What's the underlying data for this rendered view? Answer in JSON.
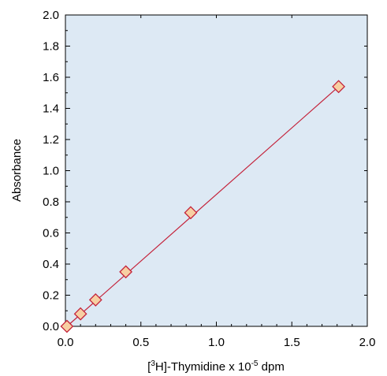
{
  "chart_data": {
    "type": "scatter",
    "xlabel": {
      "prefix": "[",
      "sup1": "3",
      "mid": "H]-Thymidine x 10",
      "sup2": "-5",
      "suffix": " dpm"
    },
    "ylabel": "Absorbance",
    "xlim": [
      0.0,
      2.0
    ],
    "ylim": [
      0.0,
      2.0
    ],
    "x_ticks": [
      "0.0",
      "0.5",
      "1.0",
      "1.5",
      "2.0"
    ],
    "y_ticks": [
      "0.0",
      "0.2",
      "0.4",
      "0.6",
      "0.8",
      "1.0",
      "1.2",
      "1.4",
      "1.6",
      "1.8",
      "2.0"
    ],
    "x_tick_values": [
      0.0,
      0.5,
      1.0,
      1.5,
      2.0
    ],
    "y_tick_values": [
      0.0,
      0.2,
      0.4,
      0.6,
      0.8,
      1.0,
      1.2,
      1.4,
      1.6,
      1.8,
      2.0
    ],
    "grid": false,
    "series": [
      {
        "x": [
          0.01,
          0.1,
          0.2,
          0.4,
          0.83,
          1.81
        ],
        "y": [
          0.0,
          0.08,
          0.17,
          0.35,
          0.73,
          1.54
        ],
        "marker": "diamond"
      }
    ],
    "fit_line": {
      "x": [
        0.01,
        1.81
      ],
      "y": [
        0.0,
        1.54
      ]
    },
    "colors": {
      "plot_background": "#dde9f4",
      "line": "#c4223a",
      "marker_fill": "#f7cfa2",
      "marker_edge": "#c4223a"
    }
  }
}
